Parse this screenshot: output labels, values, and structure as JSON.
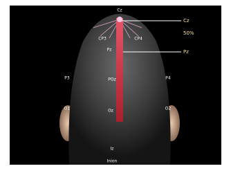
{
  "labels": {
    "top": "Cz",
    "upper_left": "CP3",
    "upper_right": "CP4",
    "mid_center": "Pz",
    "left": "P3",
    "right": "P4",
    "center": "POz",
    "lower_left": "O1",
    "lower_right": "O2",
    "lower_center": "Oz",
    "bottom_1": "Iz",
    "bottom_2": "Inion"
  },
  "callouts": [
    "Cz",
    "50%",
    "Pz"
  ]
}
